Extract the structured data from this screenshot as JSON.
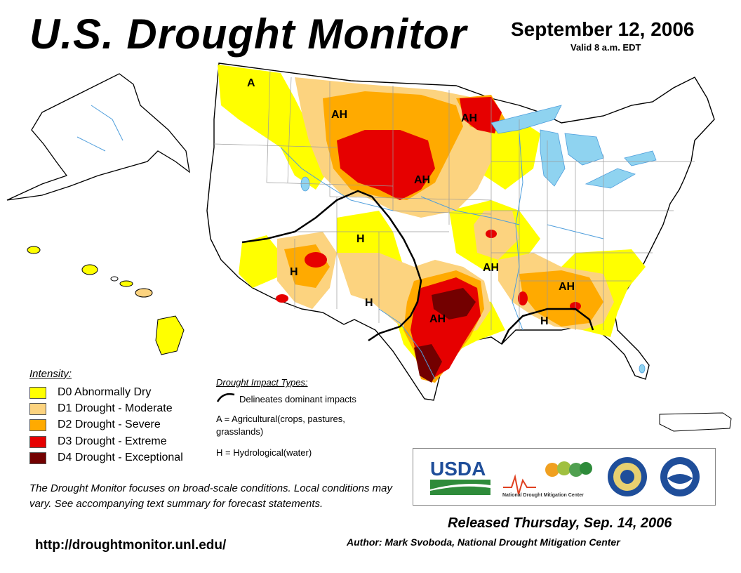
{
  "header": {
    "title": "U.S. Drought Monitor",
    "date": "September 12, 2006",
    "valid": "Valid 8 a.m. EDT"
  },
  "colors": {
    "d0": "#ffff00",
    "d1": "#fcd37f",
    "d2": "#ffaa00",
    "d3": "#e60000",
    "d4": "#730000",
    "water": "#8fd3f0",
    "border": "#9a9a9a",
    "river": "#4f9edc"
  },
  "legend": {
    "title": "Intensity:",
    "items": [
      {
        "code": "D0",
        "label": "D0 Abnormally Dry",
        "color": "#ffff00"
      },
      {
        "code": "D1",
        "label": "D1 Drought - Moderate",
        "color": "#fcd37f"
      },
      {
        "code": "D2",
        "label": "D2 Drought - Severe",
        "color": "#ffaa00"
      },
      {
        "code": "D3",
        "label": "D3 Drought - Extreme",
        "color": "#e60000"
      },
      {
        "code": "D4",
        "label": "D4 Drought - Exceptional",
        "color": "#730000"
      }
    ]
  },
  "impacts": {
    "title": "Drought Impact Types:",
    "delineates": "Delineates dominant impacts",
    "agricultural": "A = Agricultural(crops, pastures, grasslands)",
    "hydrological": "H = Hydrological(water)"
  },
  "map_labels": [
    "A",
    "AH",
    "AH",
    "AH",
    "H",
    "H",
    "H",
    "AH",
    "AH",
    "AH",
    "H"
  ],
  "disclaimer": "The Drought Monitor focuses on broad-scale conditions. Local conditions may vary. See accompanying text summary for forecast statements.",
  "url": "http://droughtmonitor.unl.edu/",
  "logos": {
    "usda": "USDA",
    "ndmc": "National Drought Mitigation Center",
    "icons": [
      "usda-logo",
      "ndmc-logo",
      "commerce-seal",
      "noaa-logo"
    ]
  },
  "released": "Released Thursday, Sep. 14, 2006",
  "author": "Author: Mark Svoboda, National Drought Mitigation Center"
}
